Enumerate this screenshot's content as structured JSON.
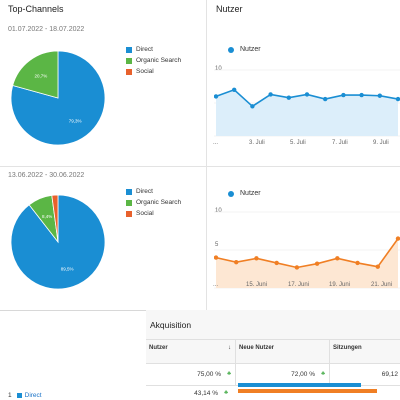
{
  "top_channels": {
    "title": "Top-Channels",
    "period1": {
      "date_range": "01.07.2022 - 18.07.2022",
      "slices": [
        {
          "label": "Direct",
          "value": 79.3,
          "text": "79,3%",
          "color": "#1a8ed3"
        },
        {
          "label": "Organic Search",
          "value": 20.7,
          "text": "20,7%",
          "color": "#5bb645"
        },
        {
          "label": "Social",
          "value": 0,
          "text": "",
          "color": "#e8612c"
        }
      ]
    },
    "period2": {
      "date_range": "13.06.2022 - 30.06.2022",
      "slices": [
        {
          "label": "Direct",
          "value": 89.5,
          "text": "89,5%",
          "color": "#1a8ed3"
        },
        {
          "label": "Organic Search",
          "value": 8.4,
          "text": "8,4%",
          "color": "#5bb645"
        },
        {
          "label": "Social",
          "value": 2.1,
          "text": "",
          "color": "#e8612c"
        }
      ]
    }
  },
  "nutzer": {
    "title": "Nutzer",
    "legend_label": "Nutzer",
    "chart1": {
      "color": "#1a8ed3",
      "fill": "#dceefa",
      "y_tick": "10",
      "ylim": [
        0,
        10
      ],
      "values": [
        6.0,
        7.0,
        4.5,
        6.3,
        5.8,
        6.3,
        5.6,
        6.2,
        6.2,
        6.1,
        5.6
      ],
      "x_labels": [
        "...",
        "3. Juli",
        "5. Juli",
        "7. Juli",
        "9. Juli"
      ]
    },
    "chart2": {
      "color": "#f07f24",
      "fill": "#fde7d3",
      "y_tick": "10",
      "y_tick2": "5",
      "ylim": [
        0,
        10
      ],
      "values": [
        4.0,
        3.4,
        3.9,
        3.3,
        2.7,
        3.2,
        3.9,
        3.3,
        2.8,
        6.5
      ],
      "x_labels": [
        "...",
        "15. Juni",
        "17. Juni",
        "19. Juni",
        "21. Juni"
      ]
    }
  },
  "table": {
    "section_title": "Akquisition",
    "col_nutzer": "Nutzer",
    "col_sort_icon": "↓",
    "col_neue_nutzer": "Neue Nutzer",
    "col_sitzungen": "Sitzungen",
    "total_nutzer": "75,00 %",
    "total_neue_nutzer": "72,00 %",
    "total_sitzungen": "69,12",
    "up_icon": "♣",
    "row1_index": "1",
    "row1_label": "Direct",
    "row1_value": "43,14 %",
    "row1_bar1": 0.76,
    "row1_bar2": 0.86
  }
}
